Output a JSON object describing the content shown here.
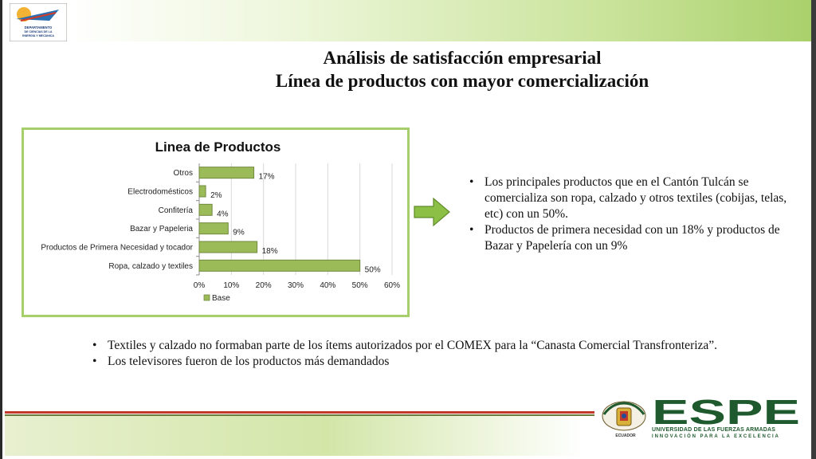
{
  "header": {
    "logo_text": "DEPARTAMENTO DE CIENCIAS DE LA ENERGÍA Y MECÁNICA"
  },
  "title": {
    "line1": "Análisis de satisfacción empresarial",
    "line2": "Línea de productos con mayor comercialización"
  },
  "chart_data": {
    "type": "bar",
    "orientation": "horizontal",
    "title": "Linea de Productos",
    "categories": [
      "Otros",
      "Electrodomésticos",
      "Confitería",
      "Bazar y Papeleria",
      "Productos de Primera Necesidad y tocador",
      "Ropa, calzado y textiles"
    ],
    "series": [
      {
        "name": "Base",
        "values": [
          17,
          2,
          4,
          9,
          18,
          50
        ],
        "value_labels": [
          "17%",
          "2%",
          "4%",
          "9%",
          "18%",
          "50%"
        ],
        "color": "#9bbb59"
      }
    ],
    "xlim": [
      0,
      60
    ],
    "x_ticks": [
      "0%",
      "10%",
      "20%",
      "30%",
      "40%",
      "50%",
      "60%"
    ],
    "grid": true,
    "legend": "bottom"
  },
  "right_bullets": [
    "Los principales productos que en el Cantón Tulcán se comercializa son ropa, calzado y otros textiles (cobijas, telas, etc) con un 50%.",
    "Productos de primera necesidad con un 18% y productos de Bazar y Papelería con un 9%"
  ],
  "bottom_bullets": [
    "Textiles y calzado no formaban parte de los ítems autorizados por el COMEX para la “Canasta Comercial Transfronteriza”.",
    "Los televisores fueron de los productos más demandados"
  ],
  "footer": {
    "brand": "ESPE",
    "university": "UNIVERSIDAD DE LAS FUERZAS ARMADAS",
    "tagline": "INNOVACIÓN PARA LA EXCELENCIA",
    "shield_caption": "ECUADOR"
  },
  "colors": {
    "bar": "#9bbb59",
    "bar_stroke": "#71893f",
    "chart_border": "#a6cf6b",
    "arrow": "#8cbf45",
    "brand_green": "#1f5a2e"
  }
}
